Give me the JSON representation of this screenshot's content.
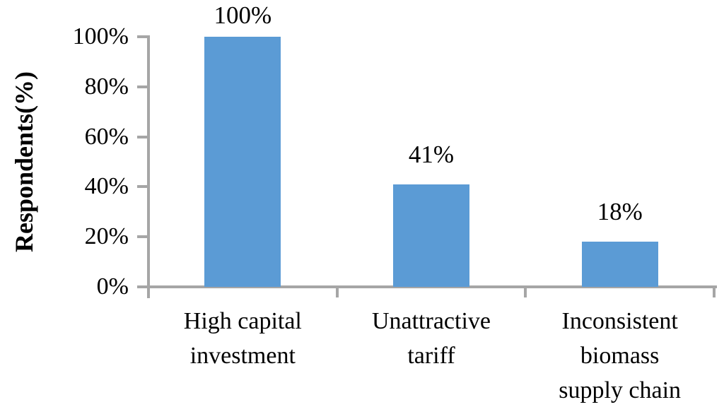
{
  "chart_data": {
    "type": "bar",
    "title": "",
    "ylabel": "Respondents(%)",
    "xlabel": "",
    "categories": [
      "High capital investment",
      "Unattractive tariff",
      "Inconsistent biomass supply chain"
    ],
    "category_lines": [
      [
        "High capital",
        "investment"
      ],
      [
        "Unattractive",
        "tariff"
      ],
      [
        "Inconsistent",
        "biomass",
        "supply chain"
      ]
    ],
    "values": [
      100,
      41,
      18
    ],
    "bar_labels": [
      "100%",
      "41%",
      "18%"
    ],
    "y_ticks": [
      "0%",
      "20%",
      "40%",
      "60%",
      "80%",
      "100%"
    ],
    "y_tick_values": [
      0,
      20,
      40,
      60,
      80,
      100
    ],
    "ylim": [
      0,
      100
    ],
    "grid": false,
    "legend_position": "none",
    "bar_color": "#5B9BD5",
    "axis_color": "#A6A6A6",
    "text_color": "#000000"
  }
}
